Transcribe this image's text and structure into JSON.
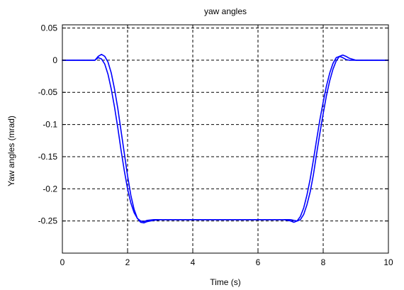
{
  "chart_data": {
    "type": "line",
    "title": "yaw angles",
    "xlabel": "Time (s)",
    "ylabel": "Yaw angles (mrad)",
    "xlim": [
      0,
      10
    ],
    "ylim": [
      -0.3,
      0.055
    ],
    "xticks": [
      0,
      2,
      4,
      6,
      8,
      10
    ],
    "xtick_labels": [
      "0",
      "2",
      "4",
      "6",
      "8",
      "10"
    ],
    "yticks": [
      0.05,
      0,
      -0.05,
      -0.1,
      -0.15,
      -0.2,
      -0.25
    ],
    "ytick_labels": [
      "0.05",
      "0",
      "-0.05",
      "-0.1",
      "-0.15",
      "-0.2",
      "-0.25"
    ],
    "grid": true,
    "grid_style": "dashed",
    "series_color": "#0000ff",
    "series": [
      {
        "x": [
          0,
          1.0,
          1.1,
          1.2,
          1.3,
          1.4,
          1.5,
          1.6,
          1.7,
          1.8,
          1.9,
          2.0,
          2.1,
          2.2,
          2.3,
          2.4,
          2.5,
          2.6,
          2.8,
          3.0,
          6.8,
          7.0,
          7.1,
          7.2,
          7.3,
          7.4,
          7.5,
          7.6,
          7.7,
          7.8,
          7.9,
          8.0,
          8.1,
          8.2,
          8.3,
          8.4,
          8.5,
          8.6,
          8.7,
          8.8,
          9.0,
          10
        ],
        "y": [
          0,
          0,
          0.004,
          0.002,
          -0.006,
          -0.022,
          -0.045,
          -0.073,
          -0.105,
          -0.14,
          -0.172,
          -0.2,
          -0.222,
          -0.237,
          -0.246,
          -0.25,
          -0.251,
          -0.249,
          -0.248,
          -0.248,
          -0.248,
          -0.25,
          -0.252,
          -0.25,
          -0.243,
          -0.23,
          -0.21,
          -0.185,
          -0.155,
          -0.123,
          -0.092,
          -0.065,
          -0.04,
          -0.02,
          -0.005,
          0.004,
          0.006,
          0.004,
          0.001,
          0,
          0,
          0
        ]
      },
      {
        "x": [
          0,
          1.0,
          1.1,
          1.2,
          1.3,
          1.4,
          1.5,
          1.6,
          1.7,
          1.8,
          1.9,
          2.0,
          2.1,
          2.2,
          2.3,
          2.4,
          2.5,
          2.6,
          2.8,
          3.0,
          6.8,
          7.0,
          7.1,
          7.2,
          7.3,
          7.4,
          7.5,
          7.6,
          7.7,
          7.8,
          7.9,
          8.0,
          8.1,
          8.2,
          8.3,
          8.4,
          8.5,
          8.6,
          8.7,
          8.8,
          9.0,
          10
        ],
        "y": [
          0,
          0,
          0.006,
          0.009,
          0.006,
          -0.003,
          -0.02,
          -0.045,
          -0.075,
          -0.11,
          -0.145,
          -0.18,
          -0.21,
          -0.232,
          -0.246,
          -0.252,
          -0.253,
          -0.251,
          -0.249,
          -0.248,
          -0.248,
          -0.248,
          -0.249,
          -0.25,
          -0.248,
          -0.24,
          -0.225,
          -0.205,
          -0.178,
          -0.145,
          -0.113,
          -0.083,
          -0.055,
          -0.032,
          -0.014,
          -0.001,
          0.006,
          0.008,
          0.006,
          0.003,
          0,
          0
        ]
      }
    ]
  }
}
